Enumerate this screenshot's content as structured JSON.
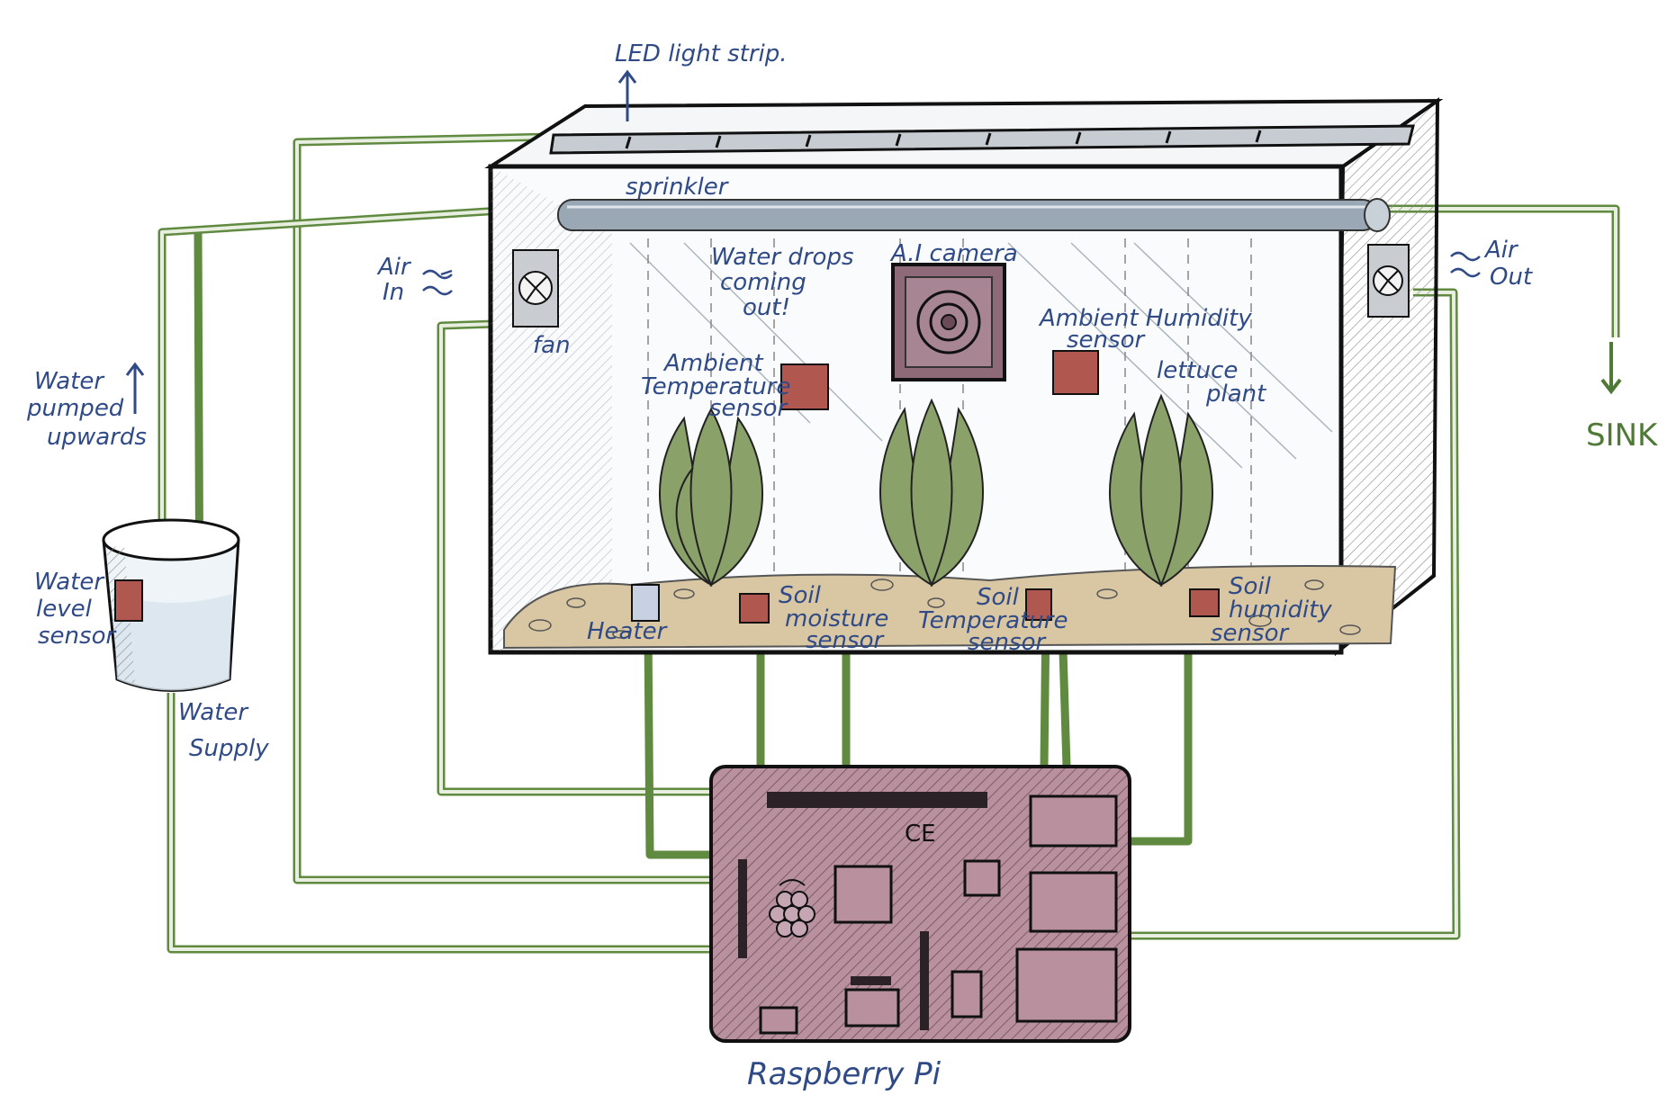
{
  "labels": {
    "led_strip": "LED light strip.",
    "sprinkler": "sprinkler",
    "water_drops": [
      "Water drops",
      "coming",
      "out!"
    ],
    "ai_camera": "A.I camera",
    "air_in": [
      "Air",
      "In"
    ],
    "air_out": [
      "Air",
      "Out"
    ],
    "fan": "fan",
    "ambient_temp": [
      "Ambient",
      "Temperature",
      "sensor"
    ],
    "ambient_humidity": [
      "Ambient Humidity",
      "sensor"
    ],
    "lettuce": [
      "lettuce",
      "plant"
    ],
    "water_pumped": [
      "Water",
      "pumped",
      "upwards"
    ],
    "water_level": [
      "Water",
      "level",
      "sensor"
    ],
    "water_supply": [
      "Water",
      "Supply"
    ],
    "heater": "Heater",
    "soil_moisture": [
      "Soil",
      "moisture",
      "sensor"
    ],
    "soil_temperature": [
      "Soil",
      "Temperature",
      "sensor"
    ],
    "soil_humidity": [
      "Soil",
      "humidity",
      "sensor"
    ],
    "sink": "SINK",
    "raspberry_pi": "Raspberry Pi",
    "ce_mark": "CE"
  },
  "colors": {
    "wire": "#5f8a3f",
    "ink": "#2f4a86",
    "sensor": "#b0584f",
    "pi_board": "#b8909e",
    "plant": "#8aa26a",
    "soil": "#d9c7a3",
    "pipe": "#9aa7b4"
  }
}
